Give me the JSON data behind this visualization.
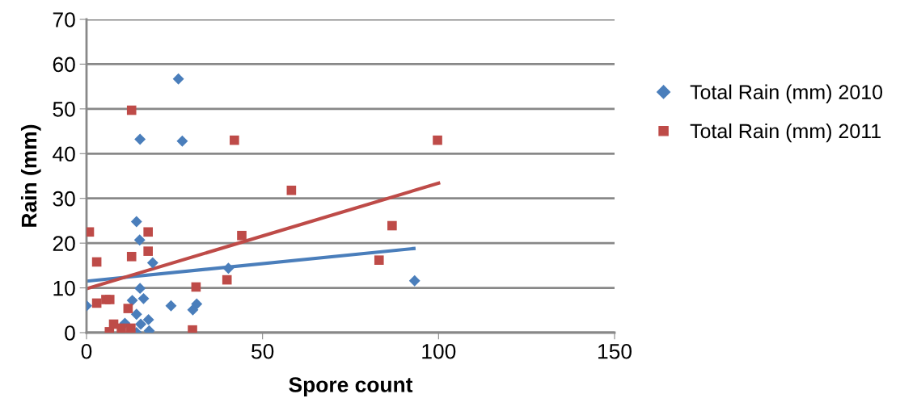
{
  "chart_data": {
    "type": "scatter",
    "xlabel": "Spore count",
    "ylabel": "Rain (mm)",
    "xlim": [
      0,
      150
    ],
    "xticks": [
      0,
      50,
      100,
      150
    ],
    "ylim": [
      0,
      70
    ],
    "yticks": [
      0,
      10,
      20,
      30,
      40,
      50,
      60,
      70
    ],
    "grid": "y",
    "legend": "right",
    "series": [
      {
        "name": "Total Rain (mm) 2010",
        "color": "#4a7ebb",
        "marker": "diamond",
        "x": [
          14.2,
          15.1,
          18.8,
          40.3,
          15.2,
          16.2,
          13.0,
          0,
          24.0,
          31.3,
          30.2,
          14.2,
          10.9,
          17.6,
          15.4,
          17.8,
          14.2,
          93.2,
          26.1,
          15.2,
          27.2
        ],
        "values": [
          24.8,
          20.7,
          15.6,
          14.4,
          9.9,
          7.6,
          7.2,
          6.0,
          6.0,
          6.4,
          5.1,
          4.1,
          2.1,
          2.9,
          1.9,
          0.4,
          0,
          11.6,
          56.7,
          43.2,
          42.8
        ]
      },
      {
        "name": "Total Rain (mm) 2011",
        "color": "#be4b48",
        "marker": "square",
        "x": [
          12.8,
          42.0,
          58.2,
          99.7,
          0.8,
          17.5,
          44.1,
          2.9,
          12.8,
          17.5,
          39.9,
          31.1,
          2.9,
          5.5,
          6.6,
          11.8,
          7.7,
          6.5,
          9.9,
          12.6,
          30.1,
          83.1,
          86.8
        ],
        "values": [
          49.7,
          43.0,
          31.8,
          43.0,
          22.5,
          22.5,
          21.7,
          15.8,
          17.0,
          18.2,
          11.8,
          10.2,
          6.6,
          7.4,
          7.4,
          5.4,
          1.9,
          0.2,
          1.0,
          1.0,
          0.6,
          16.2,
          23.9
        ]
      },
      {
        "type": "line",
        "color": "#4a7ebb",
        "x": [
          0,
          93
        ],
        "values": [
          11.5,
          18.8
        ]
      },
      {
        "type": "line",
        "color": "#be4b48",
        "x": [
          0,
          100
        ],
        "values": [
          9.8,
          33.4
        ]
      }
    ]
  }
}
